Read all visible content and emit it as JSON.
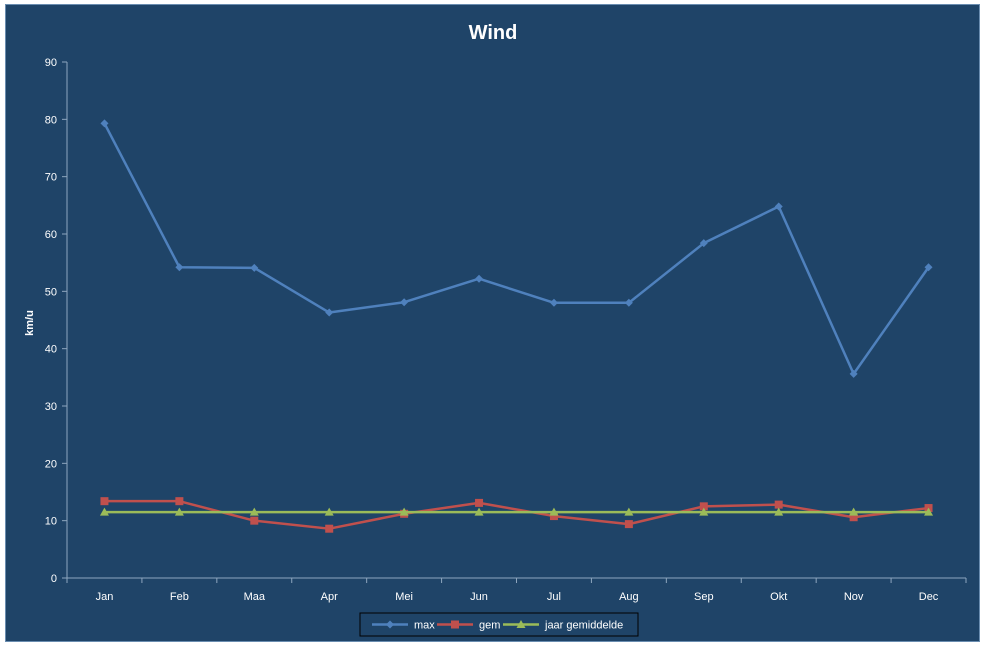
{
  "chart_data": {
    "type": "line",
    "title": "Wind",
    "xlabel": "",
    "ylabel": "km/u",
    "ylim": [
      0,
      90
    ],
    "yticks": [
      0,
      10,
      20,
      30,
      40,
      50,
      60,
      70,
      80,
      90
    ],
    "categories": [
      "Jan",
      "Feb",
      "Maa",
      "Apr",
      "Mei",
      "Jun",
      "Jul",
      "Aug",
      "Sep",
      "Okt",
      "Nov",
      "Dec"
    ],
    "grid": false,
    "legend_position": "bottom",
    "series": [
      {
        "name": "max",
        "color": "#4f81bd",
        "marker": "diamond",
        "values": [
          79.3,
          54.2,
          54.1,
          46.3,
          48.1,
          52.2,
          48.0,
          48.0,
          58.4,
          64.8,
          35.6,
          54.2
        ]
      },
      {
        "name": "gem",
        "color": "#c0504d",
        "marker": "square",
        "values": [
          13.4,
          13.4,
          10.0,
          8.6,
          11.2,
          13.1,
          10.8,
          9.4,
          12.5,
          12.8,
          10.6,
          12.2
        ]
      },
      {
        "name": "jaar gemiddelde",
        "color": "#9bbb59",
        "marker": "triangle",
        "values": [
          11.5,
          11.5,
          11.5,
          11.5,
          11.5,
          11.5,
          11.5,
          11.5,
          11.5,
          11.5,
          11.5,
          11.5
        ]
      }
    ]
  }
}
